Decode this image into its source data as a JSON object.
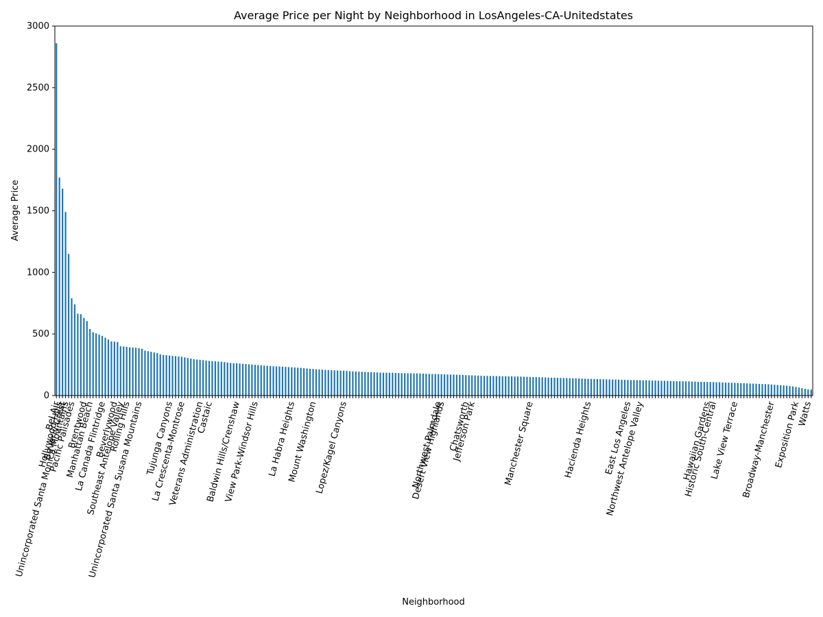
{
  "chart_data": {
    "type": "bar",
    "title": "Average Price per Night by Neighborhood in LosAngeles-CA-Unitedstates",
    "x_label": "Neighborhood",
    "y_label": "Average Price",
    "color": "#1f77b4",
    "ylim": [
      0,
      3000
    ],
    "yticks": [
      0,
      500,
      1000,
      1500,
      2000,
      2500,
      3000
    ],
    "grid": false,
    "categories": [
      "Bel Air",
      "Hollywood Hills",
      "Beverly Crest",
      "Unincorporated Santa Monica Mountains",
      null,
      "Pacific Palisades",
      null,
      null,
      null,
      "Brentwood",
      null,
      "Manhattan Beach",
      null,
      null,
      null,
      "La Canada Flintridge",
      null,
      null,
      null,
      "Beverlywood",
      null,
      "Southeast Antelope Valley",
      null,
      "Rolling Hills",
      null,
      null,
      null,
      "Unincorporated Santa Susana Mountains",
      null,
      null,
      null,
      null,
      null,
      null,
      null,
      null,
      null,
      "Tujunga Canyons",
      null,
      null,
      null,
      "La Crescenta-Montrose",
      null,
      null,
      null,
      null,
      null,
      "Veterans Administration",
      null,
      null,
      "Castaic",
      null,
      null,
      null,
      null,
      null,
      null,
      null,
      null,
      "Baldwin Hills/Crenshaw",
      null,
      null,
      null,
      null,
      null,
      "View Park-Windsor Hills",
      null,
      null,
      null,
      null,
      null,
      null,
      null,
      null,
      null,
      null,
      null,
      "La Habra Heights",
      null,
      null,
      null,
      null,
      null,
      null,
      "Mount Washington",
      null,
      null,
      null,
      null,
      null,
      null,
      null,
      null,
      null,
      "Lopez/Kagel Canyons",
      null,
      null,
      null,
      null,
      null,
      null,
      null,
      null,
      null,
      null,
      null,
      null,
      null,
      null,
      null,
      null,
      null,
      null,
      null,
      null,
      null,
      null,
      null,
      null,
      null,
      null,
      null,
      null,
      null,
      null,
      "Northwest Palmdale",
      "Desert View Highlands",
      null,
      null,
      null,
      null,
      null,
      null,
      null,
      "Chatsworth",
      null,
      "Jefferson Park",
      null,
      null,
      null,
      null,
      null,
      null,
      null,
      null,
      null,
      null,
      null,
      null,
      null,
      null,
      null,
      null,
      null,
      null,
      "Manchester Square",
      null,
      null,
      null,
      null,
      null,
      null,
      null,
      null,
      null,
      null,
      null,
      null,
      null,
      null,
      null,
      null,
      null,
      null,
      "Hacienda Heights",
      null,
      null,
      null,
      null,
      null,
      null,
      null,
      null,
      null,
      null,
      null,
      null,
      "East Los Angeles",
      null,
      null,
      null,
      "Northwest Antelope Valley",
      null,
      null,
      null,
      null,
      null,
      null,
      null,
      null,
      null,
      null,
      null,
      null,
      null,
      null,
      null,
      null,
      null,
      null,
      null,
      null,
      null,
      "Hawaiian Gardens",
      null,
      "Historic South-Central",
      null,
      null,
      null,
      null,
      null,
      null,
      "Lake View Terrace",
      null,
      null,
      null,
      null,
      null,
      null,
      null,
      null,
      null,
      null,
      null,
      "Broadway-Manchester",
      null,
      null,
      null,
      null,
      null,
      null,
      null,
      "Exposition Park",
      null,
      null,
      null,
      "Watts",
      null
    ],
    "values": [
      2860,
      1770,
      1680,
      1490,
      1150,
      790,
      740,
      665,
      660,
      630,
      605,
      540,
      515,
      505,
      495,
      485,
      470,
      455,
      440,
      438,
      435,
      400,
      398,
      395,
      392,
      390,
      388,
      385,
      380,
      365,
      360,
      355,
      350,
      345,
      335,
      330,
      328,
      325,
      322,
      320,
      318,
      315,
      310,
      305,
      300,
      295,
      292,
      290,
      288,
      285,
      282,
      280,
      278,
      276,
      274,
      272,
      268,
      265,
      263,
      262,
      260,
      258,
      256,
      254,
      252,
      250,
      248,
      246,
      244,
      242,
      240,
      238,
      237,
      236,
      235,
      233,
      231,
      230,
      228,
      226,
      225,
      222,
      220,
      218,
      216,
      214,
      212,
      210,
      208,
      207,
      206,
      205,
      204,
      203,
      202,
      200,
      198,
      196,
      195,
      194,
      193,
      192,
      191,
      190,
      189,
      188,
      187,
      186,
      186,
      185,
      185,
      184,
      183,
      182,
      182,
      181,
      181,
      180,
      180,
      179,
      178,
      177,
      176,
      175,
      175,
      174,
      173,
      172,
      171,
      170,
      170,
      169,
      168,
      167,
      166,
      165,
      164,
      163,
      162,
      161,
      160,
      160,
      159,
      159,
      158,
      158,
      157,
      157,
      156,
      156,
      155,
      155,
      154,
      153,
      152,
      151,
      150,
      150,
      149,
      148,
      147,
      146,
      145,
      145,
      144,
      143,
      142,
      142,
      141,
      140,
      140,
      139,
      138,
      137,
      136,
      135,
      135,
      134,
      133,
      132,
      132,
      131,
      130,
      130,
      129,
      128,
      128,
      127,
      126,
      126,
      125,
      125,
      124,
      124,
      123,
      122,
      122,
      121,
      120,
      120,
      119,
      118,
      118,
      117,
      116,
      116,
      115,
      115,
      114,
      113,
      112,
      112,
      111,
      110,
      110,
      109,
      108,
      108,
      107,
      106,
      105,
      104,
      103,
      102,
      101,
      100,
      99,
      98,
      97,
      96,
      95,
      94,
      93,
      92,
      90,
      88,
      86,
      84,
      82,
      80,
      77,
      74,
      70,
      65,
      60,
      55,
      50,
      48
    ]
  }
}
